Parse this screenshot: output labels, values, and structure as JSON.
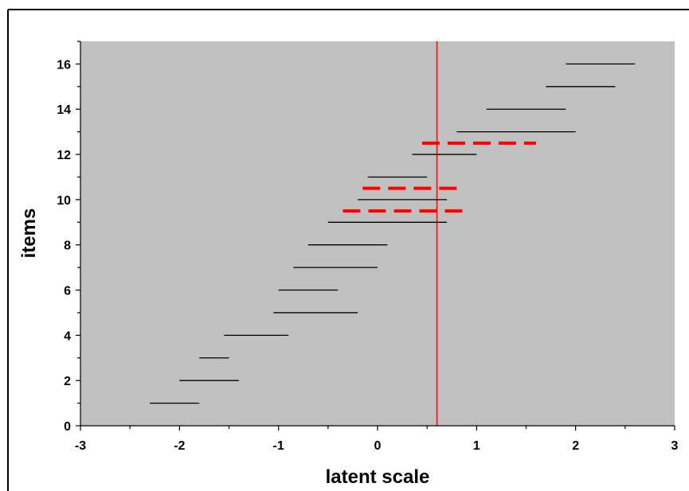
{
  "chart_data": {
    "type": "line",
    "title": "",
    "xlabel": "latent scale",
    "ylabel": "items",
    "xlim": [
      -3,
      3
    ],
    "ylim": [
      0,
      17
    ],
    "x_ticks": [
      "-3",
      "-2",
      "-1",
      "0",
      "1",
      "2",
      "3"
    ],
    "y_ticks": [
      "0",
      "2",
      "4",
      "6",
      "8",
      "10",
      "12",
      "14",
      "16"
    ],
    "plot_background": "#c0c0c0",
    "grid": false,
    "legend": "none",
    "reference_line": {
      "x": 0.6,
      "color": "#ff0000"
    },
    "series": [
      {
        "style": "solid",
        "color": "#000000",
        "segments": [
          {
            "item": 1,
            "x_start": -2.3,
            "x_end": -1.8
          },
          {
            "item": 2,
            "x_start": -2.0,
            "x_end": -1.4
          },
          {
            "item": 3,
            "x_start": -1.8,
            "x_end": -1.5
          },
          {
            "item": 4,
            "x_start": -1.55,
            "x_end": -0.9
          },
          {
            "item": 5,
            "x_start": -1.05,
            "x_end": -0.2
          },
          {
            "item": 6,
            "x_start": -1.0,
            "x_end": -0.4
          },
          {
            "item": 7,
            "x_start": -0.85,
            "x_end": 0.0
          },
          {
            "item": 8,
            "x_start": -0.7,
            "x_end": 0.1
          },
          {
            "item": 9,
            "x_start": -0.5,
            "x_end": 0.7
          },
          {
            "item": 10,
            "x_start": -0.2,
            "x_end": 0.7
          },
          {
            "item": 11,
            "x_start": -0.1,
            "x_end": 0.5
          },
          {
            "item": 12,
            "x_start": 0.35,
            "x_end": 1.0
          },
          {
            "item": 13,
            "x_start": 0.8,
            "x_end": 2.0
          },
          {
            "item": 14,
            "x_start": 1.1,
            "x_end": 1.9
          },
          {
            "item": 15,
            "x_start": 1.7,
            "x_end": 2.4
          },
          {
            "item": 16,
            "x_start": 1.9,
            "x_end": 2.6
          }
        ]
      },
      {
        "style": "dashed",
        "color": "#ff0000",
        "segments": [
          {
            "item": 9.5,
            "x_start": -0.35,
            "x_end": 0.9
          },
          {
            "item": 10.5,
            "x_start": -0.15,
            "x_end": 0.8
          },
          {
            "item": 12.5,
            "x_start": 0.45,
            "x_end": 1.6
          }
        ]
      }
    ]
  }
}
